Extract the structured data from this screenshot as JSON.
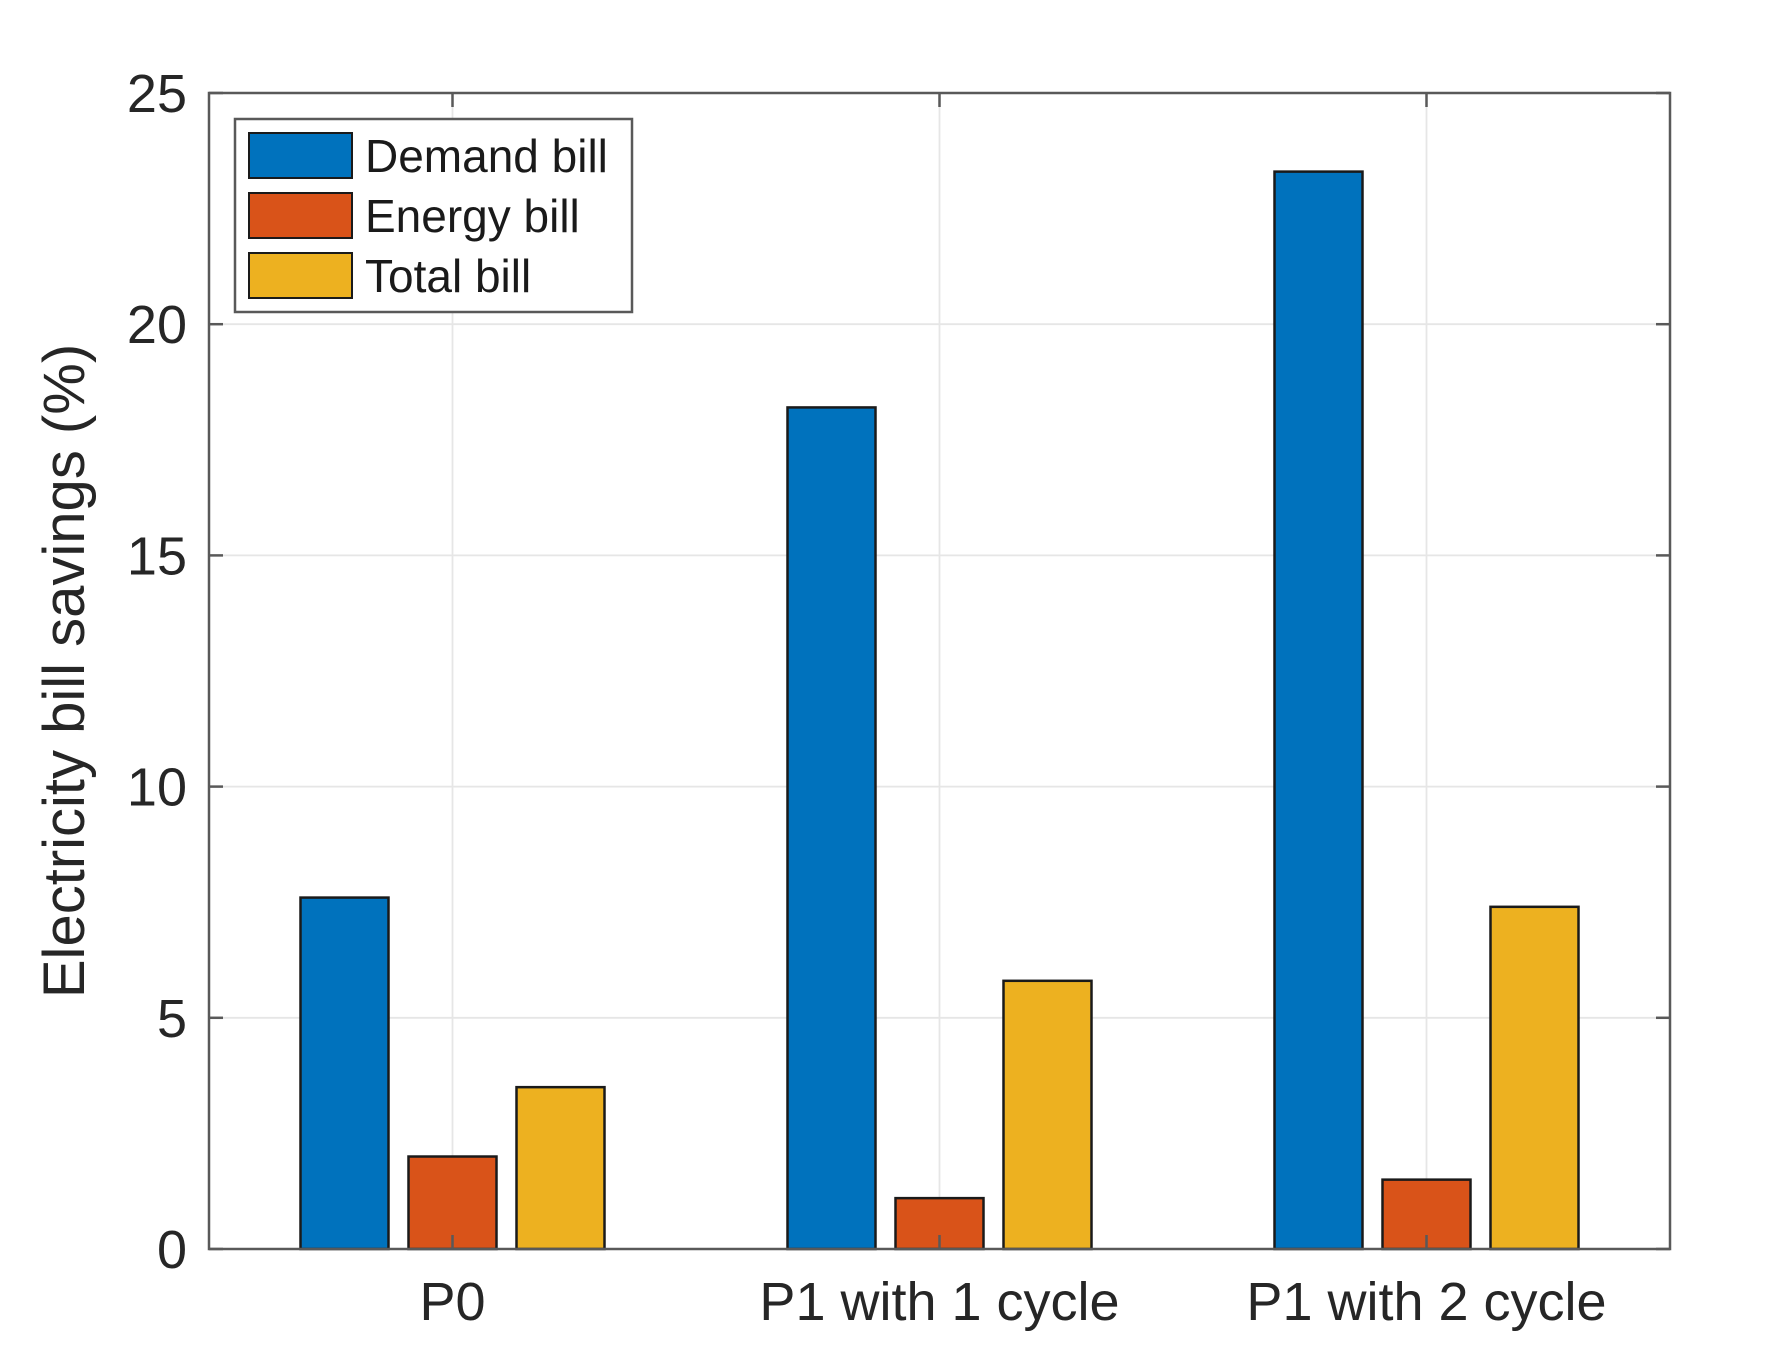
{
  "chart_data": {
    "type": "bar",
    "title": "",
    "categories": [
      "P0",
      "P1 with 1 cycle",
      "P1 with 2 cycle"
    ],
    "series": [
      {
        "name": "Demand bill",
        "color": "#0072BD",
        "values": [
          7.6,
          18.2,
          23.3
        ]
      },
      {
        "name": "Energy bill",
        "color": "#D95319",
        "values": [
          2.0,
          1.1,
          1.5
        ]
      },
      {
        "name": "Total bill",
        "color": "#EDB120",
        "values": [
          3.5,
          5.8,
          7.4
        ]
      }
    ],
    "xlabel": "",
    "ylabel": "Electricity bill savings (%)",
    "ylim": [
      0,
      25
    ],
    "yticks": [
      0,
      5,
      10,
      15,
      20,
      25
    ],
    "grid": true,
    "legend_position": "top-left",
    "styles": {
      "bar_edge_color": "#1a1a1a",
      "axis_color": "#595959",
      "grid_color": "#e6e6e6",
      "text_color": "#262626",
      "background": "#ffffff"
    }
  }
}
